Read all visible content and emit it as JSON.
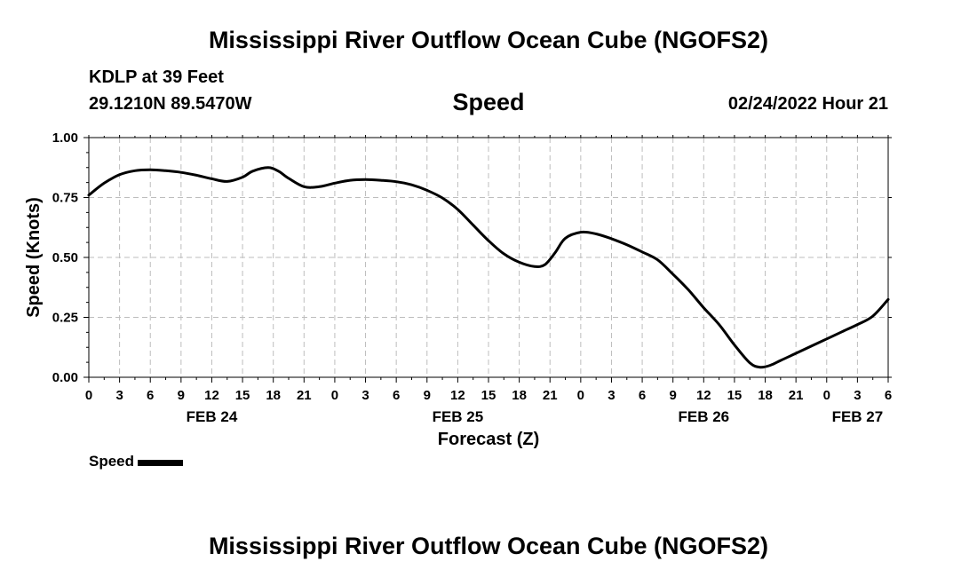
{
  "header": {
    "title": "Mississippi River Outflow Ocean Cube (NGOFS2)",
    "station": "KDLP at 39 Feet",
    "coords": "29.1210N  89.5470W",
    "subtitle": "Speed",
    "timestamp": "02/24/2022 Hour 21"
  },
  "footer": {
    "title": "Mississippi River Outflow Ocean Cube (NGOFS2)"
  },
  "chart_data": {
    "type": "line",
    "title": "Speed",
    "xlabel": "Forecast (Z)",
    "ylabel": "Speed (Knots)",
    "xlim": [
      0,
      78
    ],
    "ylim": [
      0,
      1
    ],
    "grid": true,
    "legend_position": "bottom-left",
    "line_color": "#000000",
    "x_tick_labels": [
      "0",
      "3",
      "6",
      "9",
      "12",
      "15",
      "18",
      "21",
      "0",
      "3",
      "6",
      "9",
      "12",
      "15",
      "18",
      "21",
      "0",
      "3",
      "6",
      "9",
      "12",
      "15",
      "18",
      "21",
      "0",
      "3",
      "6"
    ],
    "y_tick_labels": [
      "0.00",
      "0.25",
      "0.50",
      "0.75",
      "1.00"
    ],
    "y_ticks": [
      0,
      0.25,
      0.5,
      0.75,
      1.0
    ],
    "day_labels": [
      {
        "label": "FEB 24",
        "x": 12
      },
      {
        "label": "FEB 25",
        "x": 36
      },
      {
        "label": "FEB 26",
        "x": 60
      },
      {
        "label": "FEB 27",
        "x": 75
      }
    ],
    "series": [
      {
        "name": "Speed",
        "x": [
          0,
          1.5,
          3,
          4.5,
          6,
          7.5,
          9,
          10.5,
          12,
          13.5,
          15,
          16,
          17.5,
          18.5,
          19.5,
          21,
          22.5,
          24,
          25.5,
          27,
          28.5,
          30,
          31.5,
          33,
          34.5,
          36,
          37.5,
          39,
          40.5,
          42,
          43.5,
          44.5,
          45.5,
          46.5,
          48,
          49.5,
          51,
          52.5,
          54,
          55.5,
          57,
          58.5,
          60,
          61.5,
          63,
          64.5,
          65.5,
          66.5,
          67.5,
          69,
          70.5,
          72,
          73.5,
          75,
          76.5,
          78
        ],
        "y": [
          0.76,
          0.81,
          0.845,
          0.862,
          0.866,
          0.862,
          0.855,
          0.843,
          0.828,
          0.817,
          0.835,
          0.86,
          0.875,
          0.86,
          0.83,
          0.795,
          0.795,
          0.81,
          0.822,
          0.825,
          0.822,
          0.816,
          0.803,
          0.78,
          0.748,
          0.7,
          0.635,
          0.57,
          0.515,
          0.48,
          0.462,
          0.47,
          0.52,
          0.58,
          0.605,
          0.598,
          0.578,
          0.553,
          0.523,
          0.49,
          0.43,
          0.365,
          0.29,
          0.22,
          0.135,
          0.06,
          0.042,
          0.05,
          0.07,
          0.1,
          0.13,
          0.16,
          0.19,
          0.22,
          0.255,
          0.325
        ]
      }
    ]
  }
}
